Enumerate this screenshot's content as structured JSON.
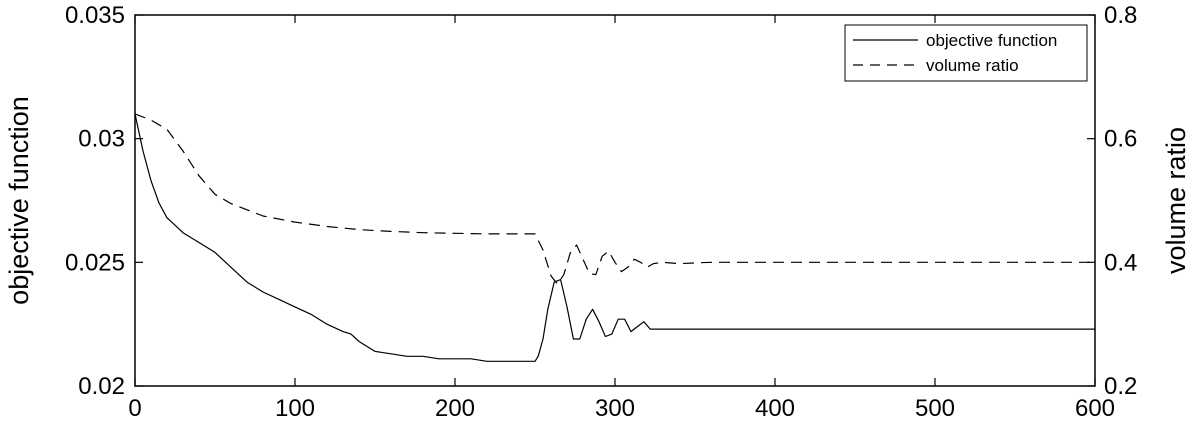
{
  "chart_data": {
    "type": "line",
    "title": "",
    "xlabel": "",
    "ylabel_left": "objective function",
    "ylabel_right": "volume ratio",
    "xlim": [
      0,
      600
    ],
    "ylim_left": [
      0.02,
      0.035
    ],
    "ylim_right": [
      0.2,
      0.8
    ],
    "x_ticks": [
      0,
      100,
      200,
      300,
      400,
      500,
      600
    ],
    "x_tick_labels": [
      "0",
      "100",
      "200",
      "300",
      "400",
      "500",
      "600"
    ],
    "y_left_ticks": [
      0.02,
      0.025,
      0.03,
      0.035
    ],
    "y_left_tick_labels": [
      "0.02",
      "0.025",
      "0.03",
      "0.035"
    ],
    "y_right_ticks": [
      0.2,
      0.4,
      0.6,
      0.8
    ],
    "y_right_tick_labels": [
      "0.2",
      "0.4",
      "0.6",
      "0.8"
    ],
    "grid": false,
    "legend_position": "top-right",
    "series": [
      {
        "name": "objective function",
        "axis": "left",
        "style": "solid",
        "color": "#000000",
        "x": [
          0,
          5,
          10,
          15,
          20,
          25,
          30,
          35,
          40,
          50,
          60,
          70,
          80,
          90,
          100,
          110,
          120,
          130,
          135,
          140,
          150,
          160,
          170,
          180,
          190,
          200,
          210,
          220,
          230,
          240,
          250,
          252,
          255,
          258,
          262,
          266,
          270,
          274,
          278,
          282,
          286,
          290,
          294,
          298,
          302,
          306,
          310,
          314,
          318,
          322,
          326,
          330,
          340,
          360,
          380,
          400,
          420,
          440,
          460,
          480,
          500,
          520,
          540,
          560,
          580,
          600
        ],
        "values": [
          0.031,
          0.0295,
          0.0283,
          0.0274,
          0.0268,
          0.0265,
          0.0262,
          0.026,
          0.0258,
          0.0254,
          0.0248,
          0.0242,
          0.0238,
          0.0235,
          0.0232,
          0.0229,
          0.0225,
          0.0222,
          0.0221,
          0.0218,
          0.0214,
          0.0213,
          0.0212,
          0.0212,
          0.0211,
          0.0211,
          0.0211,
          0.021,
          0.021,
          0.021,
          0.021,
          0.0212,
          0.0219,
          0.0231,
          0.0242,
          0.0243,
          0.0232,
          0.0219,
          0.0219,
          0.0227,
          0.0231,
          0.0226,
          0.022,
          0.0221,
          0.0227,
          0.0227,
          0.0222,
          0.0224,
          0.0226,
          0.0223,
          0.0223,
          0.0223,
          0.0223,
          0.0223,
          0.0223,
          0.0223,
          0.0223,
          0.0223,
          0.0223,
          0.0223,
          0.0223,
          0.0223,
          0.0223,
          0.0223,
          0.0223,
          0.0223
        ]
      },
      {
        "name": "volume ratio",
        "axis": "right",
        "style": "dashed",
        "color": "#000000",
        "x": [
          0,
          10,
          20,
          30,
          40,
          50,
          60,
          70,
          80,
          100,
          120,
          140,
          160,
          180,
          200,
          220,
          240,
          250,
          255,
          260,
          264,
          268,
          272,
          276,
          280,
          284,
          288,
          292,
          296,
          300,
          304,
          308,
          312,
          316,
          320,
          324,
          330,
          340,
          360,
          380,
          400,
          450,
          500,
          550,
          600
        ],
        "values": [
          0.64,
          0.63,
          0.615,
          0.58,
          0.54,
          0.51,
          0.495,
          0.485,
          0.475,
          0.465,
          0.458,
          0.453,
          0.45,
          0.448,
          0.447,
          0.446,
          0.446,
          0.446,
          0.42,
          0.378,
          0.365,
          0.38,
          0.415,
          0.428,
          0.405,
          0.382,
          0.38,
          0.41,
          0.418,
          0.4,
          0.385,
          0.392,
          0.405,
          0.4,
          0.392,
          0.398,
          0.4,
          0.398,
          0.4,
          0.4,
          0.4,
          0.4,
          0.4,
          0.4,
          0.4
        ]
      }
    ]
  }
}
